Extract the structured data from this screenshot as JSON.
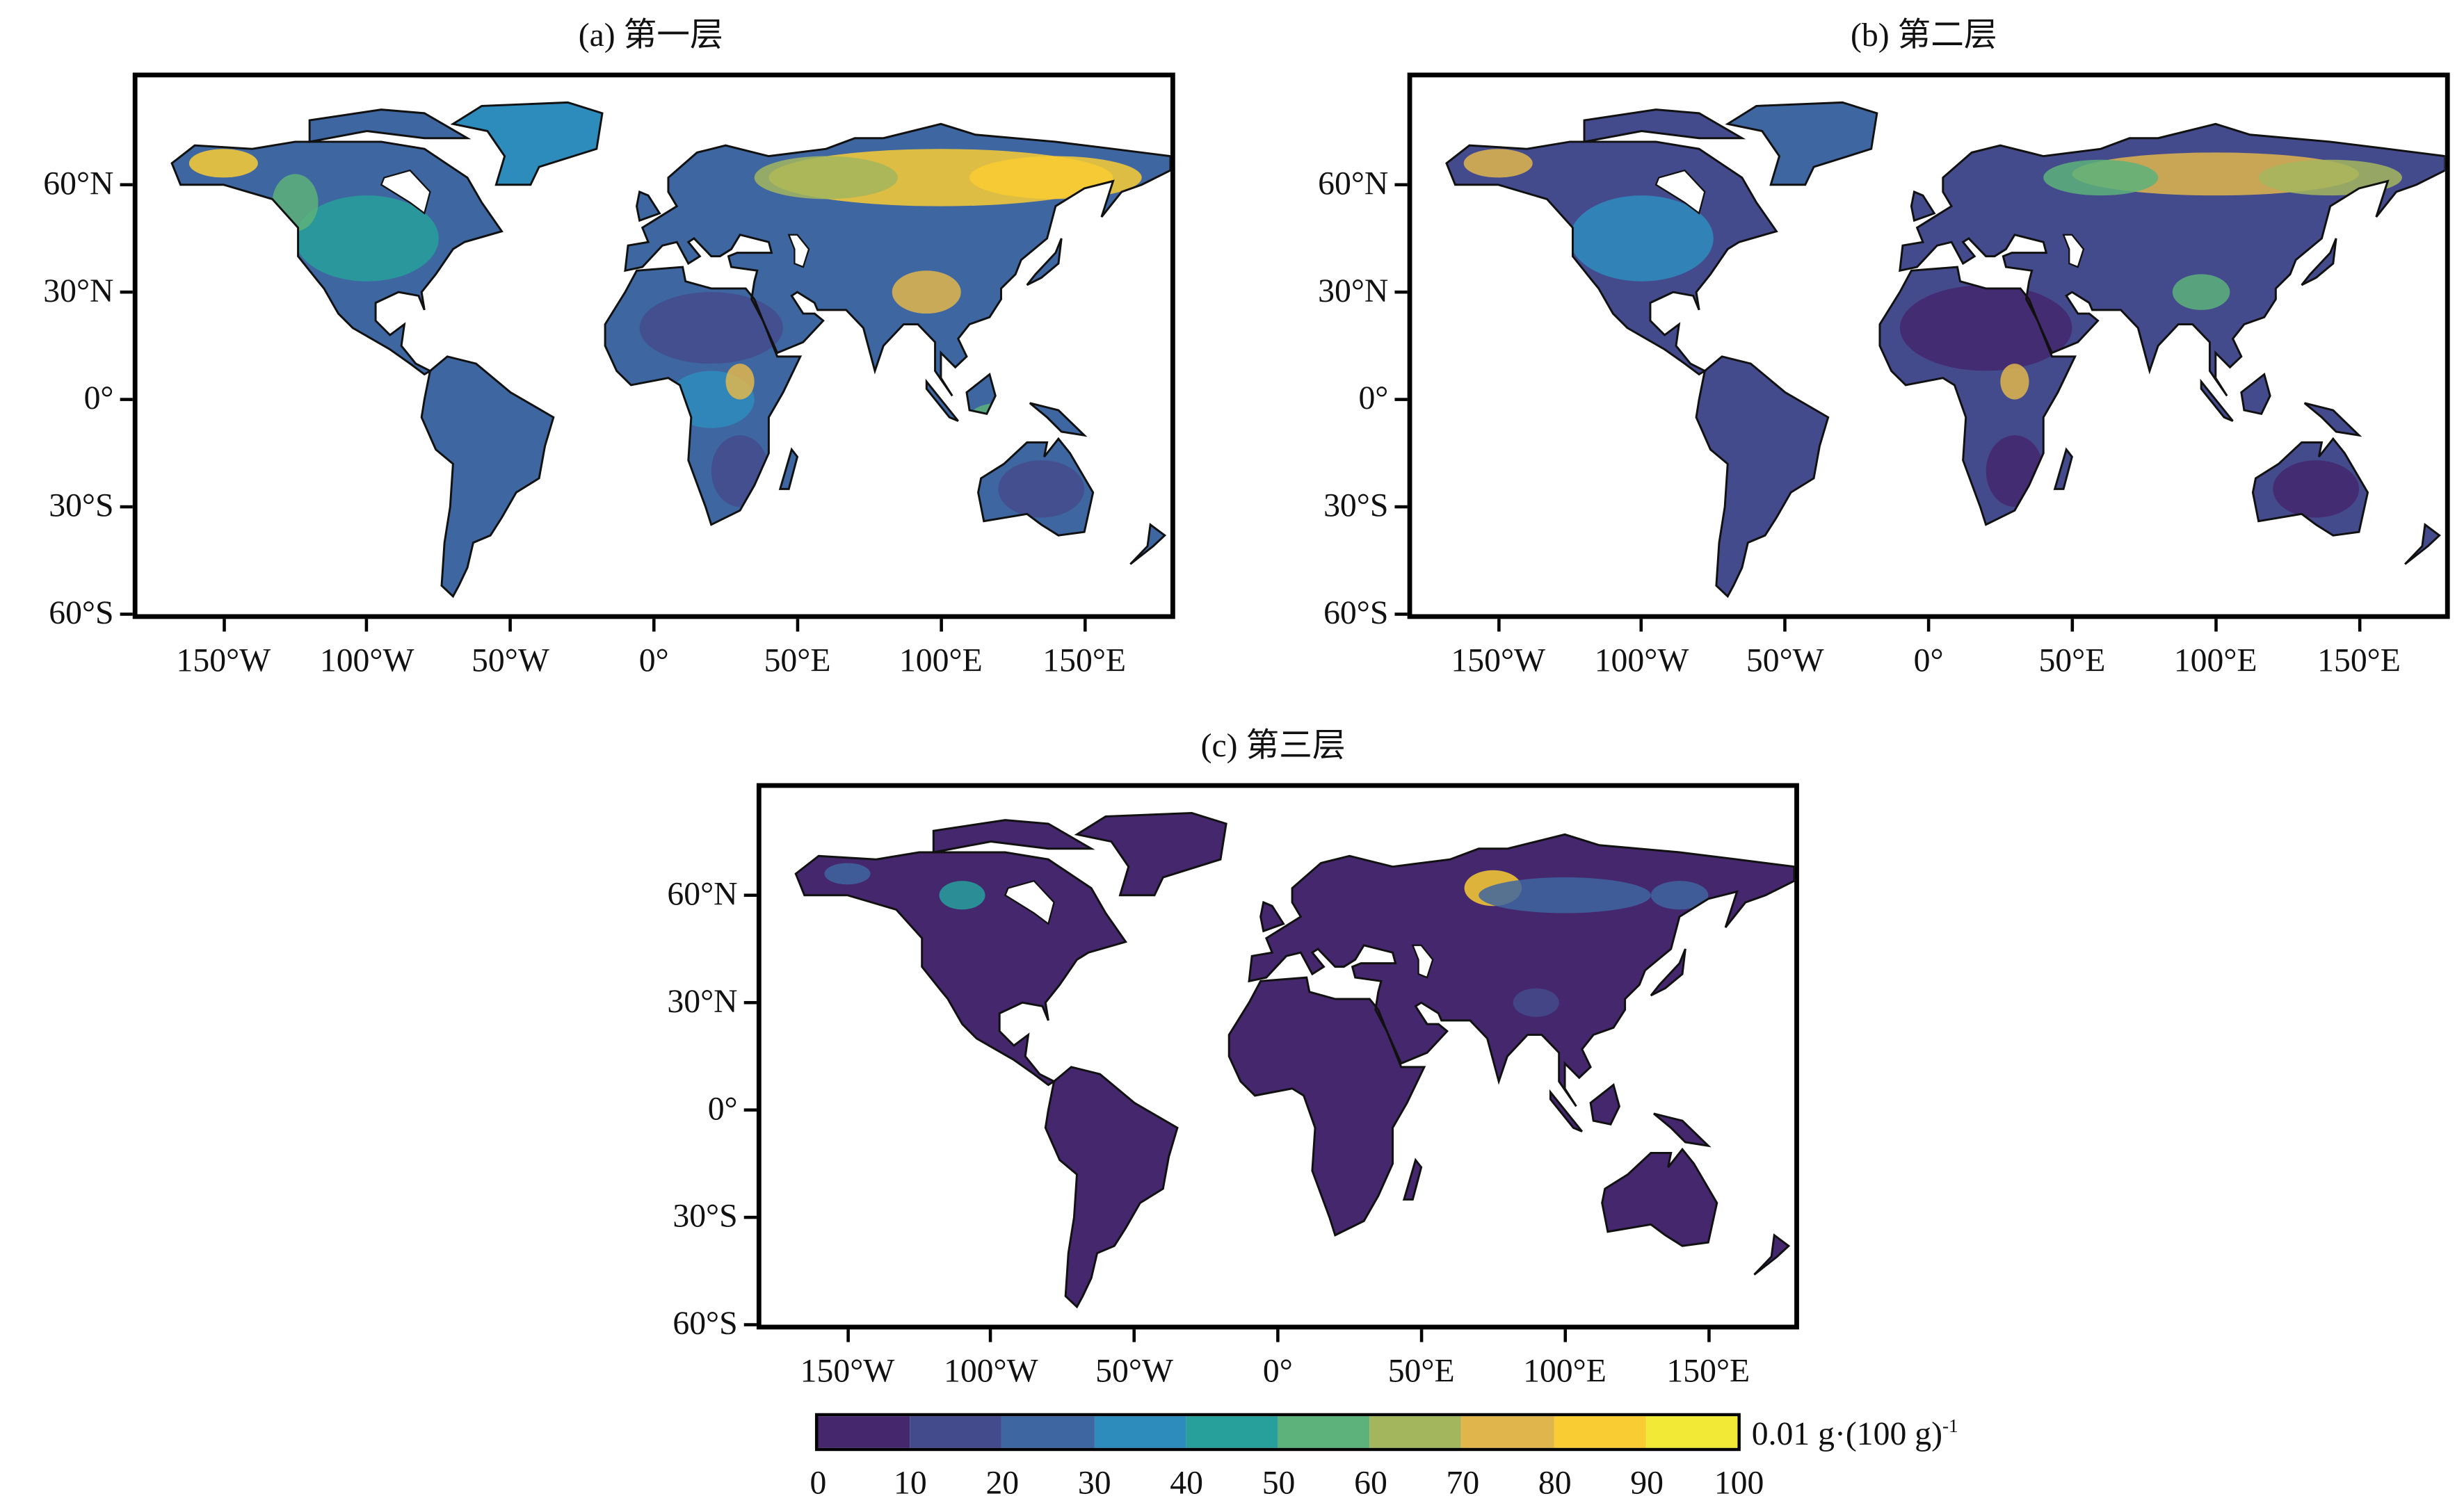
{
  "chart_data": {
    "type": "heatmap",
    "description_units": "0.01 g·(100 g)^-1",
    "panels": [
      {
        "id": "a",
        "title": "(a) 第一层",
        "palette_level": 0
      },
      {
        "id": "b",
        "title": "(b) 第二层",
        "palette_level": 1
      },
      {
        "id": "c",
        "title": "(c) 第三层",
        "palette_level": 2
      }
    ],
    "xlim": [
      -180,
      180
    ],
    "ylim": [
      -60,
      90
    ],
    "x_ticks": [
      -150,
      -100,
      -50,
      0,
      50,
      100,
      150
    ],
    "x_tick_labels": [
      "150°W",
      "100°W",
      "50°W",
      "0°",
      "50°E",
      "100°E",
      "150°E"
    ],
    "y_ticks": [
      60,
      30,
      0,
      -30,
      -60
    ],
    "y_tick_labels": [
      "60°N",
      "30°N",
      "0°",
      "30°S",
      "60°S"
    ],
    "colorbar": {
      "unit_label": "0.01 g·(100 g)",
      "unit_exponent": "-1",
      "bounds": [
        0,
        10,
        20,
        30,
        40,
        50,
        60,
        70,
        80,
        90,
        100
      ],
      "tick_labels": [
        "0",
        "10",
        "20",
        "30",
        "40",
        "50",
        "60",
        "70",
        "80",
        "90",
        "100"
      ],
      "colors": [
        "#44276d",
        "#444b8c",
        "#3e66a0",
        "#2e8cbd",
        "#27a09c",
        "#5cb27a",
        "#a3b65e",
        "#e0b64c",
        "#f9cc33",
        "#f1e935"
      ]
    }
  }
}
